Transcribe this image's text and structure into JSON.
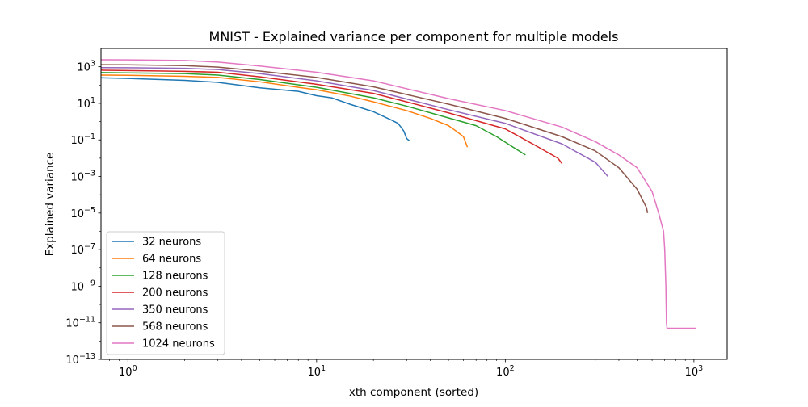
{
  "chart_data": {
    "type": "line",
    "title": "MNIST - Explained variance per component for multiple models",
    "xlabel": "xth component (sorted)",
    "ylabel": "Explained variance",
    "xscale": "log",
    "yscale": "log",
    "xlim": [
      0.72,
      1500
    ],
    "ylim": [
      1e-13,
      10000
    ],
    "x_ticks": [
      {
        "base": "10",
        "exp": "0",
        "value": 1
      },
      {
        "base": "10",
        "exp": "1",
        "value": 10
      },
      {
        "base": "10",
        "exp": "2",
        "value": 100
      },
      {
        "base": "10",
        "exp": "3",
        "value": 1000
      }
    ],
    "y_ticks": [
      {
        "base": "10",
        "exp": "3",
        "value": 1000
      },
      {
        "base": "10",
        "exp": "1",
        "value": 10
      },
      {
        "base": "10",
        "exp": "−1",
        "value": 0.1
      },
      {
        "base": "10",
        "exp": "−3",
        "value": 0.001
      },
      {
        "base": "10",
        "exp": "−5",
        "value": 1e-05
      },
      {
        "base": "10",
        "exp": "−7",
        "value": 1e-07
      },
      {
        "base": "10",
        "exp": "−9",
        "value": 1e-09
      },
      {
        "base": "10",
        "exp": "−11",
        "value": 1e-11
      },
      {
        "base": "10",
        "exp": "−13",
        "value": 1e-13
      }
    ],
    "grid": false,
    "legend_position": "lower-left",
    "series": [
      {
        "name": "32 neurons",
        "color": "#1f77b4",
        "x": [
          0.7,
          1,
          2,
          3,
          5,
          8,
          10,
          12,
          15,
          20,
          25,
          27,
          28,
          29,
          30,
          31
        ],
        "y": [
          250,
          230,
          180,
          140,
          70,
          45,
          26,
          20,
          9,
          3.5,
          1.2,
          0.8,
          0.5,
          0.3,
          0.12,
          0.09
        ]
      },
      {
        "name": "64 neurons",
        "color": "#ff7f0e",
        "x": [
          0.7,
          1,
          2,
          3,
          5,
          8,
          10,
          15,
          20,
          30,
          40,
          50,
          55,
          60,
          63
        ],
        "y": [
          350,
          340,
          300,
          260,
          150,
          75,
          55,
          25,
          12,
          4,
          1.5,
          0.6,
          0.3,
          0.15,
          0.04
        ]
      },
      {
        "name": "128 neurons",
        "color": "#2ca02c",
        "x": [
          0.7,
          1,
          2,
          3,
          5,
          10,
          20,
          30,
          50,
          70,
          90,
          110,
          128
        ],
        "y": [
          480,
          460,
          420,
          350,
          200,
          75,
          20,
          7,
          1.6,
          0.6,
          0.15,
          0.04,
          0.015
        ]
      },
      {
        "name": "200 neurons",
        "color": "#d62728",
        "x": [
          0.7,
          1,
          2,
          3,
          5,
          10,
          20,
          30,
          50,
          100,
          150,
          190,
          200
        ],
        "y": [
          650,
          620,
          560,
          500,
          280,
          110,
          35,
          12,
          3,
          0.4,
          0.04,
          0.01,
          0.005
        ]
      },
      {
        "name": "350 neurons",
        "color": "#9467bd",
        "x": [
          0.7,
          1,
          2,
          3,
          5,
          10,
          20,
          50,
          100,
          200,
          300,
          350
        ],
        "y": [
          900,
          880,
          820,
          700,
          420,
          170,
          50,
          4.5,
          0.8,
          0.06,
          0.006,
          0.001
        ]
      },
      {
        "name": "568 neurons",
        "color": "#8c564b",
        "x": [
          0.7,
          1,
          2,
          3,
          5,
          10,
          20,
          50,
          100,
          200,
          300,
          400,
          500,
          560,
          568
        ],
        "y": [
          1300,
          1280,
          1150,
          950,
          580,
          260,
          80,
          9,
          1.5,
          0.15,
          0.025,
          0.003,
          0.0002,
          2e-05,
          1e-05
        ]
      },
      {
        "name": "1024 neurons",
        "color": "#e377c2",
        "x": [
          0.7,
          1,
          2,
          3,
          5,
          10,
          20,
          50,
          100,
          200,
          300,
          400,
          500,
          600,
          650,
          690,
          700,
          710,
          715,
          720,
          1024
        ],
        "y": [
          2400,
          2380,
          2200,
          1800,
          1100,
          500,
          170,
          18,
          4,
          0.5,
          0.08,
          0.015,
          0.003,
          0.00015,
          1e-05,
          1e-06,
          1e-07,
          1e-09,
          1e-11,
          5e-12,
          5e-12
        ]
      }
    ]
  }
}
